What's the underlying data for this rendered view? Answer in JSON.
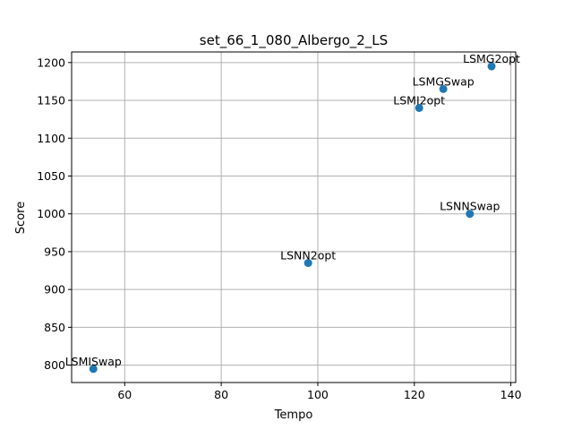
{
  "chart_data": {
    "type": "scatter",
    "title": "set_66_1_080_Albergo_2_LS",
    "xlabel": "Tempo",
    "ylabel": "Score",
    "xlim": [
      49,
      141
    ],
    "ylim": [
      777,
      1214
    ],
    "xticks": [
      60,
      80,
      100,
      120,
      140
    ],
    "yticks": [
      800,
      850,
      900,
      950,
      1000,
      1050,
      1100,
      1150,
      1200
    ],
    "grid": true,
    "color": "#1f77b4",
    "points": [
      {
        "label": "LSMG2opt",
        "x": 136,
        "y": 1195
      },
      {
        "label": "LSMGSwap",
        "x": 126,
        "y": 1165
      },
      {
        "label": "LSMI2opt",
        "x": 121,
        "y": 1140
      },
      {
        "label": "LSNNSwap",
        "x": 131.5,
        "y": 1000
      },
      {
        "label": "LSNN2opt",
        "x": 98,
        "y": 935
      },
      {
        "label": "LSMISwap",
        "x": 53.5,
        "y": 795
      }
    ]
  }
}
